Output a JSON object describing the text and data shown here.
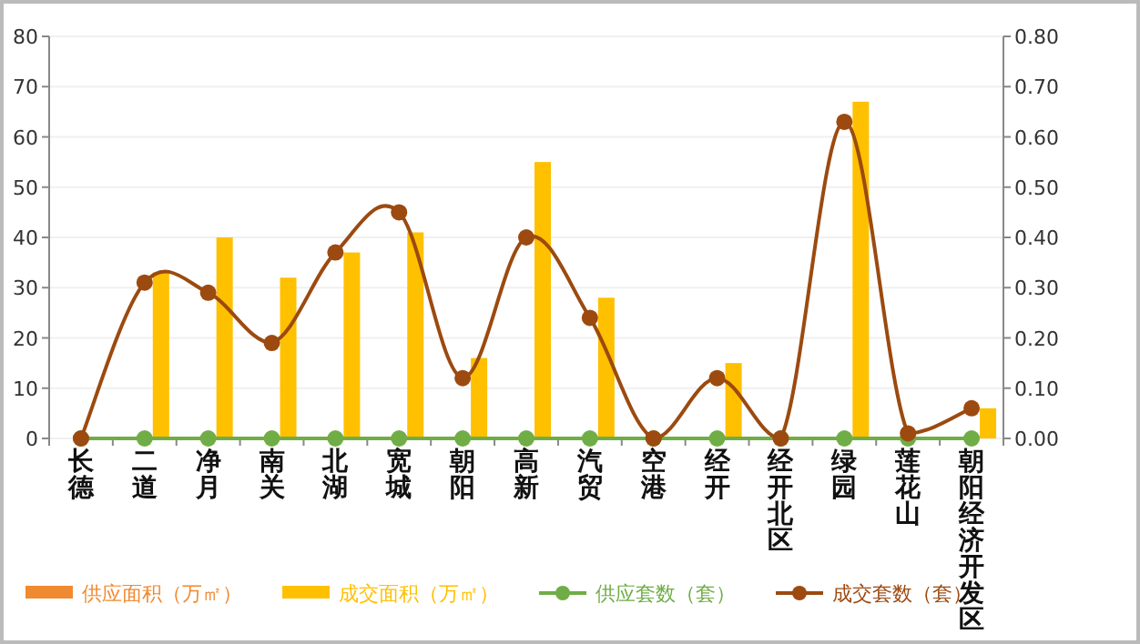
{
  "chart_data": {
    "type": "bar",
    "categories": [
      "长德",
      "二道",
      "净月",
      "南关",
      "北湖",
      "宽城",
      "朝阳",
      "高新",
      "汽贸",
      "空港",
      "经开",
      "经开北区",
      "绿园",
      "莲花山",
      "朝阳经济开发区"
    ],
    "series": [
      {
        "name": "供应面积（万㎡）",
        "color": "#f08a30",
        "values": [
          0,
          0,
          0,
          0,
          0,
          0,
          0,
          0,
          0,
          0,
          0,
          0,
          0,
          0,
          0
        ]
      },
      {
        "name": "成交面积（万㎡）",
        "color": "#ffc000",
        "values": [
          0,
          33,
          40,
          32,
          37,
          41,
          16,
          55,
          28,
          0,
          15,
          0,
          67,
          0,
          6
        ]
      },
      {
        "name": "供应套数（套）",
        "type": "line",
        "axis": "y2",
        "color": "#70ad47",
        "marker": "circle",
        "values": [
          0,
          0,
          0,
          0,
          0,
          0,
          0,
          0,
          0,
          0,
          0,
          0,
          0,
          0,
          0
        ]
      },
      {
        "name": "成交套数（套）",
        "type": "line",
        "axis": "y2",
        "color": "#9c4a10",
        "marker": "circle",
        "values": [
          0,
          0.31,
          0.29,
          0.19,
          0.37,
          0.45,
          0.12,
          0.4,
          0.24,
          0,
          0.12,
          0,
          0.63,
          0.01,
          0.06
        ]
      }
    ],
    "ylim": [
      0,
      80
    ],
    "yticks": [
      0,
      10,
      20,
      30,
      40,
      50,
      60,
      70,
      80
    ],
    "y2lim": [
      0,
      0.8
    ],
    "y2ticks": [
      {
        "value": 0,
        "label": "0.00"
      },
      {
        "value": 0.1,
        "label": "0.10"
      },
      {
        "value": 0.2,
        "label": "0.20"
      },
      {
        "value": 0.3,
        "label": "0.30"
      },
      {
        "value": 0.4,
        "label": "0.40"
      },
      {
        "value": 0.5,
        "label": "0.50"
      },
      {
        "value": 0.6,
        "label": "0.60"
      },
      {
        "value": 0.7,
        "label": "0.70"
      },
      {
        "value": 0.8,
        "label": "0.80"
      }
    ],
    "grid": "y",
    "legend": "bottom"
  }
}
